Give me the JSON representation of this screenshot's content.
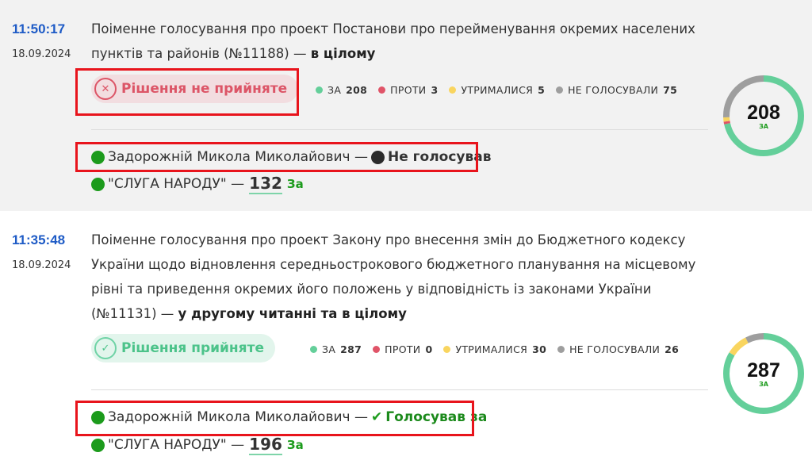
{
  "colors": {
    "for": "#64cf9a",
    "against": "#e05468",
    "abstained": "#f9d55f",
    "absent": "#9e9e9e"
  },
  "votes": [
    {
      "time": "11:50:17",
      "date": "18.09.2024",
      "title": "Поіменне голосування про проект Постанови про перейменування окремих населених пунктів та районів (№11188) —",
      "title_bold": "в цілому",
      "result": "Рішення не прийняте",
      "result_icon": "x-circle-icon",
      "legend": {
        "for_label": "ЗА",
        "for": 208,
        "against_label": "ПРОТИ",
        "against": 3,
        "abstained_label": "УТРИМАЛИСЯ",
        "abstained": 5,
        "absent_label": "НЕ ГОЛОСУВАЛИ",
        "absent": 75
      },
      "donut_value": "208",
      "donut_label": "ЗА",
      "deputy": "Задорожній Микола Миколайович —",
      "deputy_vote": "Не голосував",
      "deputy_vote_icon": "black-dot-icon",
      "faction": "\"СЛУГА НАРОДУ\" —",
      "faction_count": "132",
      "faction_vote": "За"
    },
    {
      "time": "11:35:48",
      "date": "18.09.2024",
      "title": "Поіменне голосування про проект Закону про внесення змін до Бюджетного кодексу України щодо відновлення середньострокового бюджетного планування на місцевому рівні та приведення окремих його положень у відповідність із законами України (№11131) —",
      "title_bold": "у другому читанні та в цілому",
      "result": "Рішення прийняте",
      "result_icon": "check-circle-icon",
      "legend": {
        "for_label": "ЗА",
        "for": 287,
        "against_label": "ПРОТИ",
        "against": 0,
        "abstained_label": "УТРИМАЛИСЯ",
        "abstained": 30,
        "absent_label": "НЕ ГОЛОСУВАЛИ",
        "absent": 26
      },
      "donut_value": "287",
      "donut_label": "ЗА",
      "deputy": "Задорожній Микола Миколайович —",
      "deputy_vote": "Голосував за",
      "deputy_vote_icon": "check-icon",
      "faction": "\"СЛУГА НАРОДУ\" —",
      "faction_count": "196",
      "faction_vote": "За"
    }
  ]
}
